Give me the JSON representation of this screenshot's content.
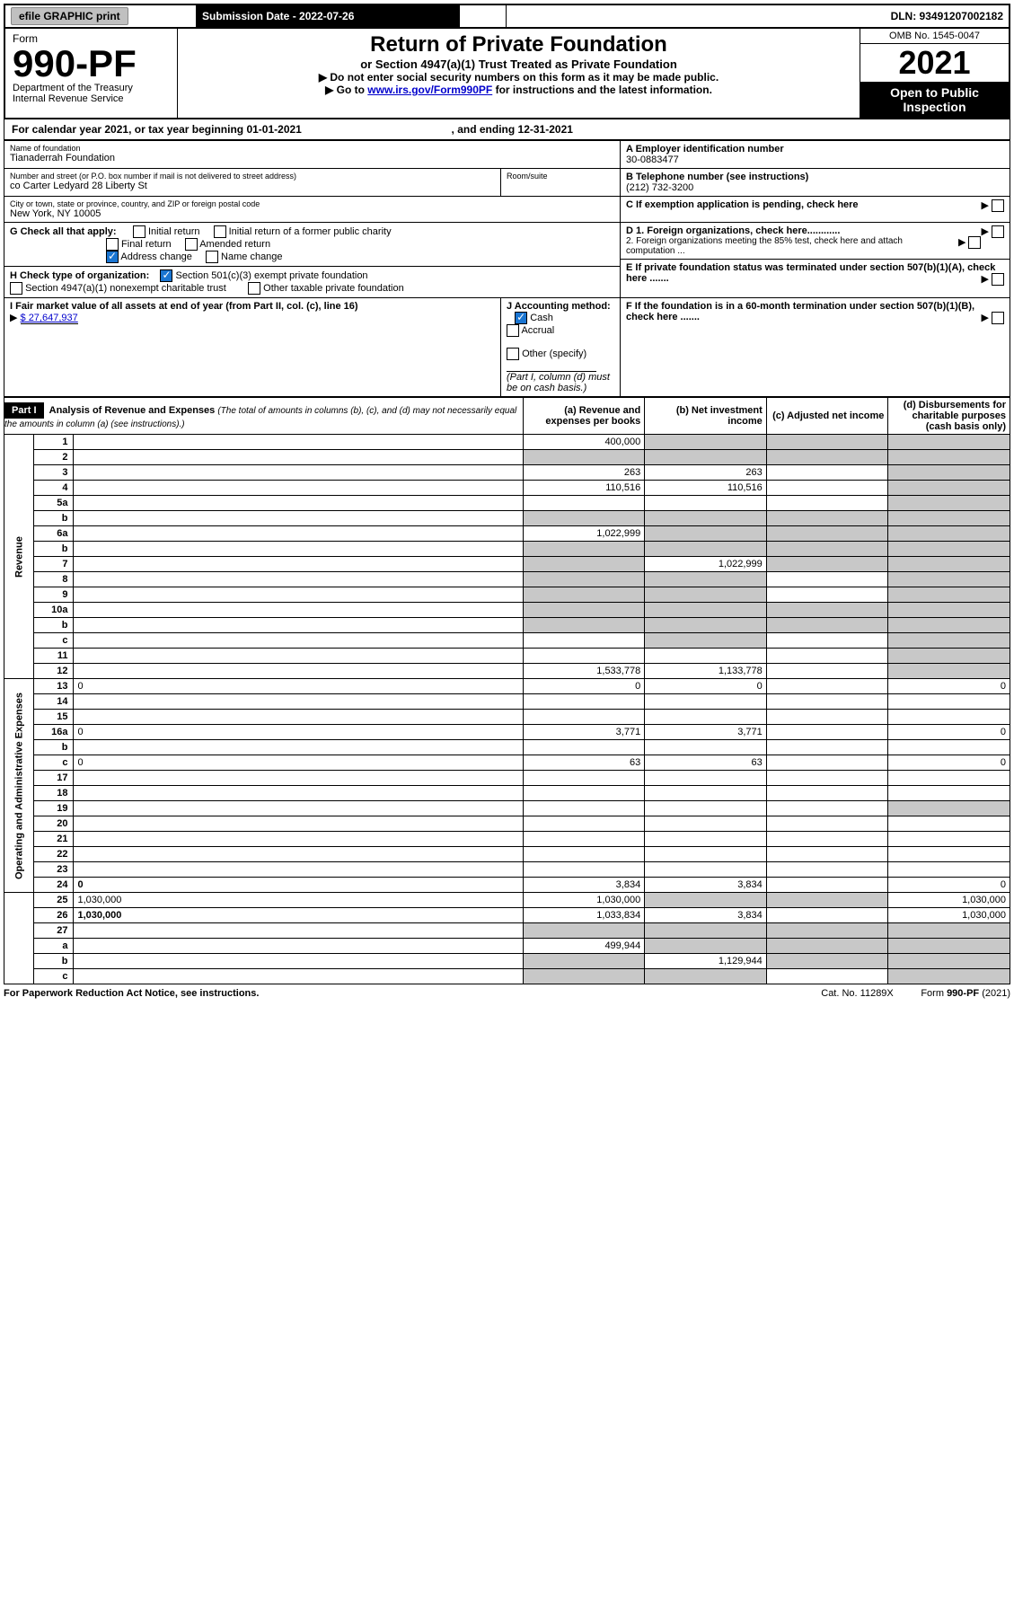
{
  "topbar": {
    "efile": "efile GRAPHIC print",
    "submission_label": "Submission Date - 2022-07-26",
    "dln_label": "DLN: 93491207002182"
  },
  "header": {
    "form_label": "Form",
    "form_no": "990-PF",
    "dept1": "Department of the Treasury",
    "dept2": "Internal Revenue Service",
    "title": "Return of Private Foundation",
    "subtitle": "or Section 4947(a)(1) Trust Treated as Private Foundation",
    "instr1": "▶ Do not enter social security numbers on this form as it may be made public.",
    "instr2_pre": "▶ Go to ",
    "instr2_link": "www.irs.gov/Form990PF",
    "instr2_post": " for instructions and the latest information.",
    "omb": "OMB No. 1545-0047",
    "year": "2021",
    "open": "Open to Public Inspection"
  },
  "calyear": {
    "text_pre": "For calendar year 2021, or tax year beginning ",
    "begin": "01-01-2021",
    "mid": " , and ending ",
    "end": "12-31-2021"
  },
  "info": {
    "name_label": "Name of foundation",
    "name": "Tianaderrah Foundation",
    "ein_label": "A Employer identification number",
    "ein": "30-0883477",
    "addr_label": "Number and street (or P.O. box number if mail is not delivered to street address)",
    "addr": "co Carter Ledyard 28 Liberty St",
    "room_label": "Room/suite",
    "phone_label": "B Telephone number (see instructions)",
    "phone": "(212) 732-3200",
    "city_label": "City or town, state or province, country, and ZIP or foreign postal code",
    "city": "New York, NY  10005",
    "c_label": "C If exemption application is pending, check here",
    "g_label": "G Check all that apply:",
    "g1": "Initial return",
    "g2": "Initial return of a former public charity",
    "g3": "Final return",
    "g4": "Amended return",
    "g5": "Address change",
    "g6": "Name change",
    "d1_label": "D 1. Foreign organizations, check here............",
    "d2_label": "2. Foreign organizations meeting the 85% test, check here and attach computation ...",
    "h_label": "H Check type of organization:",
    "h1": "Section 501(c)(3) exempt private foundation",
    "h2": "Section 4947(a)(1) nonexempt charitable trust",
    "h3": "Other taxable private foundation",
    "e_label": "E If private foundation status was terminated under section 507(b)(1)(A), check here .......",
    "i_label": "I Fair market value of all assets at end of year (from Part II, col. (c), line 16)",
    "i_value": "$  27,647,937",
    "j_label": "J Accounting method:",
    "j1": "Cash",
    "j2": "Accrual",
    "j3": "Other (specify)",
    "j_note": "(Part I, column (d) must be on cash basis.)",
    "f_label": "F If the foundation is in a 60-month termination under section 507(b)(1)(B), check here ......."
  },
  "part1": {
    "label": "Part I",
    "title": "Analysis of Revenue and Expenses",
    "title_note": "(The total of amounts in columns (b), (c), and (d) may not necessarily equal the amounts in column (a) (see instructions).)",
    "col_a": "(a) Revenue and expenses per books",
    "col_b": "(b) Net investment income",
    "col_c": "(c) Adjusted net income",
    "col_d": "(d) Disbursements for charitable purposes (cash basis only)"
  },
  "sections": {
    "revenue": "Revenue",
    "expenses": "Operating and Administrative Expenses"
  },
  "rows": [
    {
      "n": "1",
      "d": "",
      "a": "400,000",
      "b": "",
      "c": "",
      "b_gray": true,
      "c_gray": true,
      "d_gray": true
    },
    {
      "n": "2",
      "d": "",
      "a": "",
      "b": "",
      "c": "",
      "a_gray": true,
      "b_gray": true,
      "c_gray": true,
      "d_gray": true
    },
    {
      "n": "3",
      "d": "",
      "a": "263",
      "b": "263",
      "c": "",
      "d_gray": true
    },
    {
      "n": "4",
      "d": "",
      "a": "110,516",
      "b": "110,516",
      "c": "",
      "d_gray": true
    },
    {
      "n": "5a",
      "d": "",
      "a": "",
      "b": "",
      "c": "",
      "d_gray": true
    },
    {
      "n": "b",
      "d": "",
      "a": "",
      "b": "",
      "c": "",
      "a_gray": true,
      "b_gray": true,
      "c_gray": true,
      "d_gray": true
    },
    {
      "n": "6a",
      "d": "",
      "a": "1,022,999",
      "b": "",
      "c": "",
      "b_gray": true,
      "c_gray": true,
      "d_gray": true
    },
    {
      "n": "b",
      "d": "",
      "a": "",
      "b": "",
      "c": "",
      "a_gray": true,
      "b_gray": true,
      "c_gray": true,
      "d_gray": true
    },
    {
      "n": "7",
      "d": "",
      "a": "",
      "b": "1,022,999",
      "c": "",
      "a_gray": true,
      "c_gray": true,
      "d_gray": true
    },
    {
      "n": "8",
      "d": "",
      "a": "",
      "b": "",
      "c": "",
      "a_gray": true,
      "b_gray": true,
      "d_gray": true
    },
    {
      "n": "9",
      "d": "",
      "a": "",
      "b": "",
      "c": "",
      "a_gray": true,
      "b_gray": true,
      "d_gray": true
    },
    {
      "n": "10a",
      "d": "",
      "a": "",
      "b": "",
      "c": "",
      "a_gray": true,
      "b_gray": true,
      "c_gray": true,
      "d_gray": true
    },
    {
      "n": "b",
      "d": "",
      "a": "",
      "b": "",
      "c": "",
      "a_gray": true,
      "b_gray": true,
      "c_gray": true,
      "d_gray": true
    },
    {
      "n": "c",
      "d": "",
      "a": "",
      "b": "",
      "c": "",
      "b_gray": true,
      "d_gray": true
    },
    {
      "n": "11",
      "d": "",
      "a": "",
      "b": "",
      "c": "",
      "d_gray": true
    },
    {
      "n": "12",
      "d": "",
      "a": "1,533,778",
      "b": "1,133,778",
      "c": "",
      "d_gray": true,
      "bold": true
    },
    {
      "n": "13",
      "d": "0",
      "a": "0",
      "b": "0",
      "c": ""
    },
    {
      "n": "14",
      "d": "",
      "a": "",
      "b": "",
      "c": ""
    },
    {
      "n": "15",
      "d": "",
      "a": "",
      "b": "",
      "c": ""
    },
    {
      "n": "16a",
      "d": "0",
      "a": "3,771",
      "b": "3,771",
      "c": ""
    },
    {
      "n": "b",
      "d": "",
      "a": "",
      "b": "",
      "c": ""
    },
    {
      "n": "c",
      "d": "0",
      "a": "63",
      "b": "63",
      "c": ""
    },
    {
      "n": "17",
      "d": "",
      "a": "",
      "b": "",
      "c": ""
    },
    {
      "n": "18",
      "d": "",
      "a": "",
      "b": "",
      "c": ""
    },
    {
      "n": "19",
      "d": "",
      "a": "",
      "b": "",
      "c": "",
      "d_gray": true
    },
    {
      "n": "20",
      "d": "",
      "a": "",
      "b": "",
      "c": ""
    },
    {
      "n": "21",
      "d": "",
      "a": "",
      "b": "",
      "c": ""
    },
    {
      "n": "22",
      "d": "",
      "a": "",
      "b": "",
      "c": ""
    },
    {
      "n": "23",
      "d": "",
      "a": "",
      "b": "",
      "c": ""
    },
    {
      "n": "24",
      "d": "0",
      "a": "3,834",
      "b": "3,834",
      "c": "",
      "bold": true
    },
    {
      "n": "25",
      "d": "1,030,000",
      "a": "1,030,000",
      "b": "",
      "c": "",
      "b_gray": true,
      "c_gray": true
    },
    {
      "n": "26",
      "d": "1,030,000",
      "a": "1,033,834",
      "b": "3,834",
      "c": "",
      "bold": true
    },
    {
      "n": "27",
      "d": "",
      "a": "",
      "b": "",
      "c": "",
      "a_gray": true,
      "b_gray": true,
      "c_gray": true,
      "d_gray": true
    },
    {
      "n": "a",
      "d": "",
      "a": "499,944",
      "b": "",
      "c": "",
      "b_gray": true,
      "c_gray": true,
      "d_gray": true,
      "bold": true
    },
    {
      "n": "b",
      "d": "",
      "a": "",
      "b": "1,129,944",
      "c": "",
      "a_gray": true,
      "c_gray": true,
      "d_gray": true,
      "bold": true
    },
    {
      "n": "c",
      "d": "",
      "a": "",
      "b": "",
      "c": "",
      "a_gray": true,
      "b_gray": true,
      "d_gray": true,
      "bold": true
    }
  ],
  "footer": {
    "left": "For Paperwork Reduction Act Notice, see instructions.",
    "mid": "Cat. No. 11289X",
    "right": "Form 990-PF (2021)"
  }
}
